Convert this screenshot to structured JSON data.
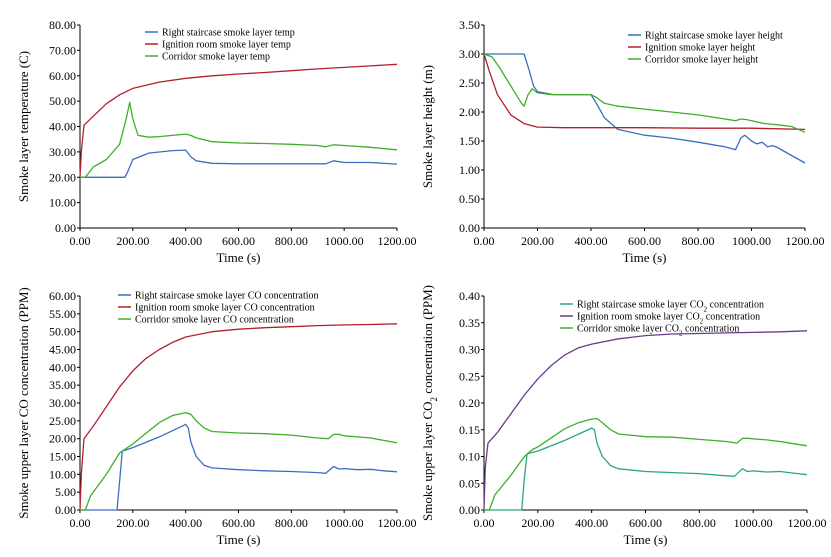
{
  "colors": {
    "blue": "#3a6fc0",
    "red": "#b3202b",
    "green": "#3fae2a",
    "teal": "#2aa58a",
    "purple": "#6b3a8f"
  },
  "chart_data": [
    {
      "type": "line",
      "title": "",
      "xlabel": "Time (s)",
      "ylabel": "Smoke layer temperature (C)",
      "xlim": [
        0,
        1200
      ],
      "ylim": [
        0,
        80
      ],
      "x_ticks": [
        "0.00",
        "200.00",
        "400.00",
        "600.00",
        "800.00",
        "1000.00",
        "1200.00"
      ],
      "y_ticks": [
        "0.00",
        "10.00",
        "20.00",
        "30.00",
        "40.00",
        "50.00",
        "60.00",
        "70.00",
        "80.00"
      ],
      "legend_position": "top-center",
      "grid": false,
      "series": [
        {
          "name": "Right staircase smoke layer temp",
          "color": "blue",
          "x": [
            0,
            100,
            170,
            180,
            200,
            260,
            350,
            400,
            420,
            440,
            500,
            600,
            800,
            930,
            960,
            1000,
            1100,
            1200
          ],
          "y": [
            20,
            20,
            20,
            22,
            27,
            29.5,
            30.5,
            30.7,
            28,
            26.5,
            25.5,
            25.3,
            25.3,
            25.3,
            26.5,
            25.8,
            25.8,
            25.2
          ]
        },
        {
          "name": "Ignition room smoke layer temp",
          "color": "red",
          "x": [
            0,
            5,
            15,
            50,
            100,
            150,
            200,
            300,
            400,
            500,
            600,
            700,
            800,
            900,
            1000,
            1100,
            1200
          ],
          "y": [
            20,
            30,
            40.5,
            44,
            49,
            52.5,
            55,
            57.5,
            59,
            60,
            60.7,
            61.3,
            62,
            62.7,
            63.3,
            63.9,
            64.5
          ]
        },
        {
          "name": "Corridor smoke layer temp",
          "color": "green",
          "x": [
            0,
            20,
            50,
            100,
            150,
            175,
            188,
            200,
            220,
            260,
            300,
            400,
            420,
            440,
            500,
            600,
            700,
            800,
            900,
            930,
            960,
            1000,
            1100,
            1200
          ],
          "y": [
            20,
            20,
            24,
            27,
            33,
            43,
            49.5,
            43,
            36.5,
            35.8,
            36,
            37,
            36.5,
            35.5,
            34,
            33.5,
            33.3,
            33,
            32.5,
            32,
            32.8,
            32.5,
            31.8,
            30.8
          ]
        }
      ]
    },
    {
      "type": "line",
      "title": "",
      "xlabel": "Time (s)",
      "ylabel": "Smoke layer height (m)",
      "xlim": [
        0,
        1200
      ],
      "ylim": [
        0,
        3.5
      ],
      "x_ticks": [
        "0.00",
        "200.00",
        "400.00",
        "600.00",
        "800.00",
        "1000.00",
        "1200.00"
      ],
      "y_ticks": [
        "0.00",
        "0.50",
        "1.00",
        "1.50",
        "2.00",
        "2.50",
        "3.00",
        "3.50"
      ],
      "legend_position": "top-center",
      "grid": false,
      "series": [
        {
          "name": "Right staircase smoke layer height",
          "color": "blue",
          "x": [
            0,
            100,
            150,
            170,
            185,
            200,
            260,
            300,
            400,
            420,
            450,
            500,
            600,
            700,
            800,
            900,
            940,
            960,
            975,
            1000,
            1020,
            1040,
            1060,
            1080,
            1100,
            1150,
            1200
          ],
          "y": [
            3,
            3,
            3,
            2.7,
            2.45,
            2.35,
            2.3,
            2.3,
            2.3,
            2.15,
            1.9,
            1.7,
            1.6,
            1.55,
            1.48,
            1.4,
            1.35,
            1.55,
            1.6,
            1.5,
            1.45,
            1.48,
            1.4,
            1.42,
            1.38,
            1.25,
            1.12
          ]
        },
        {
          "name": "Ignition smoke layer height",
          "color": "red",
          "x": [
            0,
            20,
            50,
            100,
            150,
            200,
            300,
            400,
            600,
            800,
            1000,
            1200
          ],
          "y": [
            3,
            2.7,
            2.3,
            1.95,
            1.8,
            1.74,
            1.73,
            1.73,
            1.73,
            1.72,
            1.72,
            1.7
          ]
        },
        {
          "name": "Corridor smoke layer height",
          "color": "green",
          "x": [
            0,
            30,
            60,
            100,
            140,
            150,
            165,
            180,
            200,
            250,
            300,
            400,
            420,
            450,
            500,
            600,
            700,
            800,
            900,
            940,
            960,
            980,
            1000,
            1050,
            1100,
            1150,
            1200
          ],
          "y": [
            3,
            2.95,
            2.75,
            2.45,
            2.15,
            2.1,
            2.3,
            2.4,
            2.33,
            2.3,
            2.3,
            2.3,
            2.25,
            2.15,
            2.1,
            2.05,
            2,
            1.95,
            1.88,
            1.85,
            1.88,
            1.87,
            1.85,
            1.8,
            1.78,
            1.75,
            1.65
          ]
        }
      ]
    },
    {
      "type": "line",
      "title": "",
      "xlabel": "Time (s)",
      "ylabel": "Smoke upper layer CO concentration (PPM)",
      "xlim": [
        0,
        1200
      ],
      "ylim": [
        0,
        60
      ],
      "x_ticks": [
        "0.00",
        "200.00",
        "400.00",
        "600.00",
        "800.00",
        "1000.00",
        "1200.00"
      ],
      "y_ticks": [
        "0.00",
        "5.00",
        "10.00",
        "15.00",
        "20.00",
        "25.00",
        "30.00",
        "35.00",
        "40.00",
        "45.00",
        "50.00",
        "55.00",
        "60.00"
      ],
      "legend_position": "top-center",
      "grid": false,
      "series": [
        {
          "name": "Right staircase smoke layer CO concentration",
          "color": "blue",
          "x": [
            0,
            140,
            150,
            160,
            200,
            300,
            400,
            410,
            420,
            440,
            470,
            500,
            600,
            700,
            800,
            900,
            930,
            960,
            980,
            1000,
            1050,
            1100,
            1150,
            1200
          ],
          "y": [
            0,
            0,
            8,
            16.5,
            17.5,
            20.5,
            24,
            23,
            19,
            15,
            12.5,
            11.8,
            11.3,
            11,
            10.8,
            10.5,
            10.3,
            12.2,
            11.5,
            11.6,
            11.3,
            11.4,
            11,
            10.7
          ]
        },
        {
          "name": "Ignition room smoke layer CO concentration",
          "color": "red",
          "x": [
            0,
            5,
            15,
            50,
            100,
            150,
            200,
            250,
            300,
            350,
            400,
            500,
            600,
            700,
            800,
            900,
            1000,
            1100,
            1200
          ],
          "y": [
            0,
            10,
            20,
            23.5,
            29,
            34.5,
            39,
            42.5,
            45,
            47,
            48.5,
            50,
            50.7,
            51.1,
            51.4,
            51.7,
            51.9,
            52,
            52.2
          ]
        },
        {
          "name": "Corridor smoke layer CO concentration",
          "color": "green",
          "x": [
            0,
            20,
            40,
            60,
            100,
            150,
            180,
            200,
            250,
            300,
            350,
            400,
            420,
            440,
            470,
            500,
            600,
            700,
            800,
            900,
            940,
            960,
            980,
            1000,
            1050,
            1100,
            1150,
            1200
          ],
          "y": [
            0,
            0,
            4,
            6,
            10,
            16,
            17.5,
            18.5,
            21.5,
            24.5,
            26.5,
            27.3,
            26.8,
            25,
            23,
            22,
            21.6,
            21.4,
            21,
            20.2,
            20,
            21.2,
            21.2,
            20.8,
            20.5,
            20.2,
            19.5,
            18.8
          ]
        }
      ]
    },
    {
      "type": "line",
      "title": "",
      "xlabel": "Time (s)",
      "ylabel": "Smoke upper layer CO₂ concentration (PPM)",
      "xlim": [
        0,
        1200
      ],
      "ylim": [
        0,
        0.4
      ],
      "x_ticks": [
        "0.00",
        "200.00",
        "400.00",
        "600.00",
        "800.00",
        "1000.00",
        "1200.00"
      ],
      "y_ticks": [
        "0.00",
        "0.05",
        "0.10",
        "0.15",
        "0.20",
        "0.25",
        "0.30",
        "0.35",
        "0.40"
      ],
      "legend_position": "top-center",
      "grid": false,
      "series": [
        {
          "name": "Right staircase smoke layer CO₂ concentration",
          "color": "teal",
          "x": [
            0,
            140,
            150,
            160,
            200,
            300,
            400,
            410,
            420,
            440,
            470,
            500,
            600,
            700,
            800,
            900,
            930,
            960,
            980,
            1000,
            1050,
            1100,
            1150,
            1200
          ],
          "y": [
            0,
            0,
            0.06,
            0.105,
            0.11,
            0.13,
            0.153,
            0.15,
            0.125,
            0.1,
            0.083,
            0.077,
            0.072,
            0.07,
            0.068,
            0.064,
            0.063,
            0.077,
            0.072,
            0.073,
            0.071,
            0.072,
            0.069,
            0.066
          ]
        },
        {
          "name": "Ignition room smoke layer CO₂ concentration",
          "color": "purple",
          "x": [
            0,
            5,
            15,
            50,
            100,
            150,
            200,
            250,
            300,
            350,
            400,
            500,
            600,
            700,
            800,
            900,
            1000,
            1100,
            1200
          ],
          "y": [
            0,
            0.08,
            0.125,
            0.145,
            0.18,
            0.215,
            0.245,
            0.27,
            0.29,
            0.303,
            0.31,
            0.32,
            0.326,
            0.329,
            0.33,
            0.331,
            0.332,
            0.333,
            0.335
          ]
        },
        {
          "name": "Corridor smoke layer CO₂ concentration",
          "color": "green",
          "x": [
            0,
            20,
            40,
            60,
            100,
            150,
            180,
            200,
            250,
            300,
            350,
            400,
            420,
            440,
            470,
            500,
            600,
            700,
            800,
            900,
            940,
            960,
            980,
            1000,
            1050,
            1100,
            1150,
            1200
          ],
          "y": [
            0,
            0,
            0.028,
            0.04,
            0.065,
            0.1,
            0.113,
            0.118,
            0.135,
            0.152,
            0.163,
            0.17,
            0.171,
            0.163,
            0.15,
            0.142,
            0.137,
            0.136,
            0.132,
            0.128,
            0.125,
            0.134,
            0.134,
            0.133,
            0.131,
            0.128,
            0.124,
            0.12
          ]
        }
      ]
    }
  ]
}
